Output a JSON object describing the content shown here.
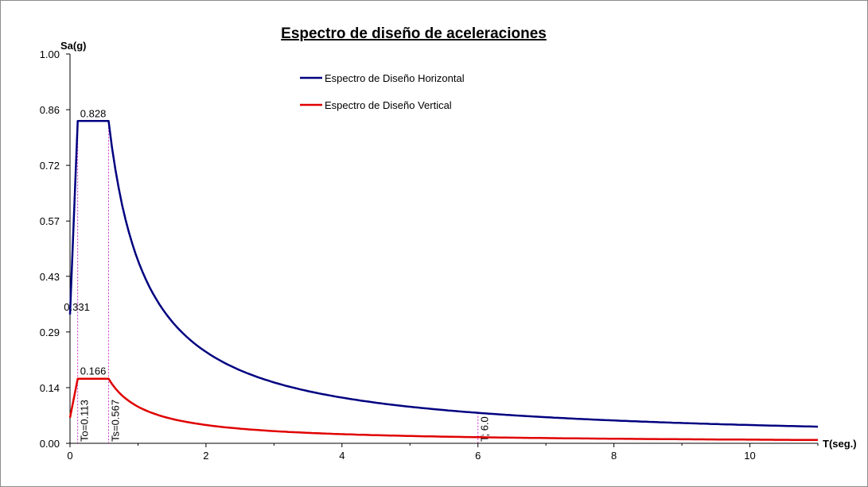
{
  "chart_data": {
    "type": "line",
    "title": "Espectro de diseño de aceleraciones",
    "xlabel": "T(seg.)",
    "ylabel": "Sa(g)",
    "xlim": [
      0,
      11
    ],
    "ylim": [
      0,
      1.0
    ],
    "x_ticks": [
      "0",
      "2",
      "4",
      "6",
      "8",
      "10"
    ],
    "x_tick_values": [
      0,
      2,
      4,
      6,
      8,
      10
    ],
    "y_ticks": [
      "0.00",
      "0.14",
      "0.29",
      "0.43",
      "0.57",
      "0.72",
      "0.86",
      "1.00"
    ],
    "y_tick_values": [
      0.0,
      0.143,
      0.286,
      0.429,
      0.571,
      0.714,
      0.857,
      1.0
    ],
    "grid": false,
    "legend_position": "top-center",
    "series": [
      {
        "name": "Espectro de Diseño Horizontal",
        "color": "#000080",
        "shape": "spectrum",
        "start": 0.331,
        "plateau": 0.828,
        "To": 0.113,
        "Ts": 0.567,
        "x_end": 11,
        "points": [
          [
            0,
            0.331
          ],
          [
            0.113,
            0.828
          ],
          [
            0.567,
            0.828
          ],
          [
            1,
            0.469
          ],
          [
            2,
            0.235
          ],
          [
            4,
            0.117
          ],
          [
            6,
            0.078
          ],
          [
            8,
            0.059
          ],
          [
            11,
            0.043
          ]
        ]
      },
      {
        "name": "Espectro de Diseño Vertical",
        "color": "#e00000",
        "shape": "spectrum",
        "start": 0.066,
        "plateau": 0.166,
        "To": 0.113,
        "Ts": 0.567,
        "x_end": 11,
        "points": [
          [
            0,
            0.066
          ],
          [
            0.113,
            0.166
          ],
          [
            0.567,
            0.166
          ],
          [
            1,
            0.094
          ],
          [
            2,
            0.047
          ],
          [
            4,
            0.024
          ],
          [
            6,
            0.016
          ],
          [
            8,
            0.012
          ],
          [
            11,
            0.009
          ]
        ]
      }
    ],
    "markers": [
      {
        "x": 0.113,
        "y_top": 0.828,
        "label": "To=0.113",
        "color": "#cc33cc"
      },
      {
        "x": 0.567,
        "y_top": 0.828,
        "label": "Ts=0.567",
        "color": "#cc33cc"
      },
      {
        "x": 6.0,
        "y_top": 0.078,
        "label": "T; 6.0",
        "color": "#cc33cc"
      }
    ],
    "annotations": [
      {
        "text": "0.828",
        "x": 0.34,
        "y": 0.828
      },
      {
        "text": "0.331",
        "x": 0.1,
        "y": 0.331
      },
      {
        "text": "0.166",
        "x": 0.34,
        "y": 0.166
      }
    ]
  }
}
